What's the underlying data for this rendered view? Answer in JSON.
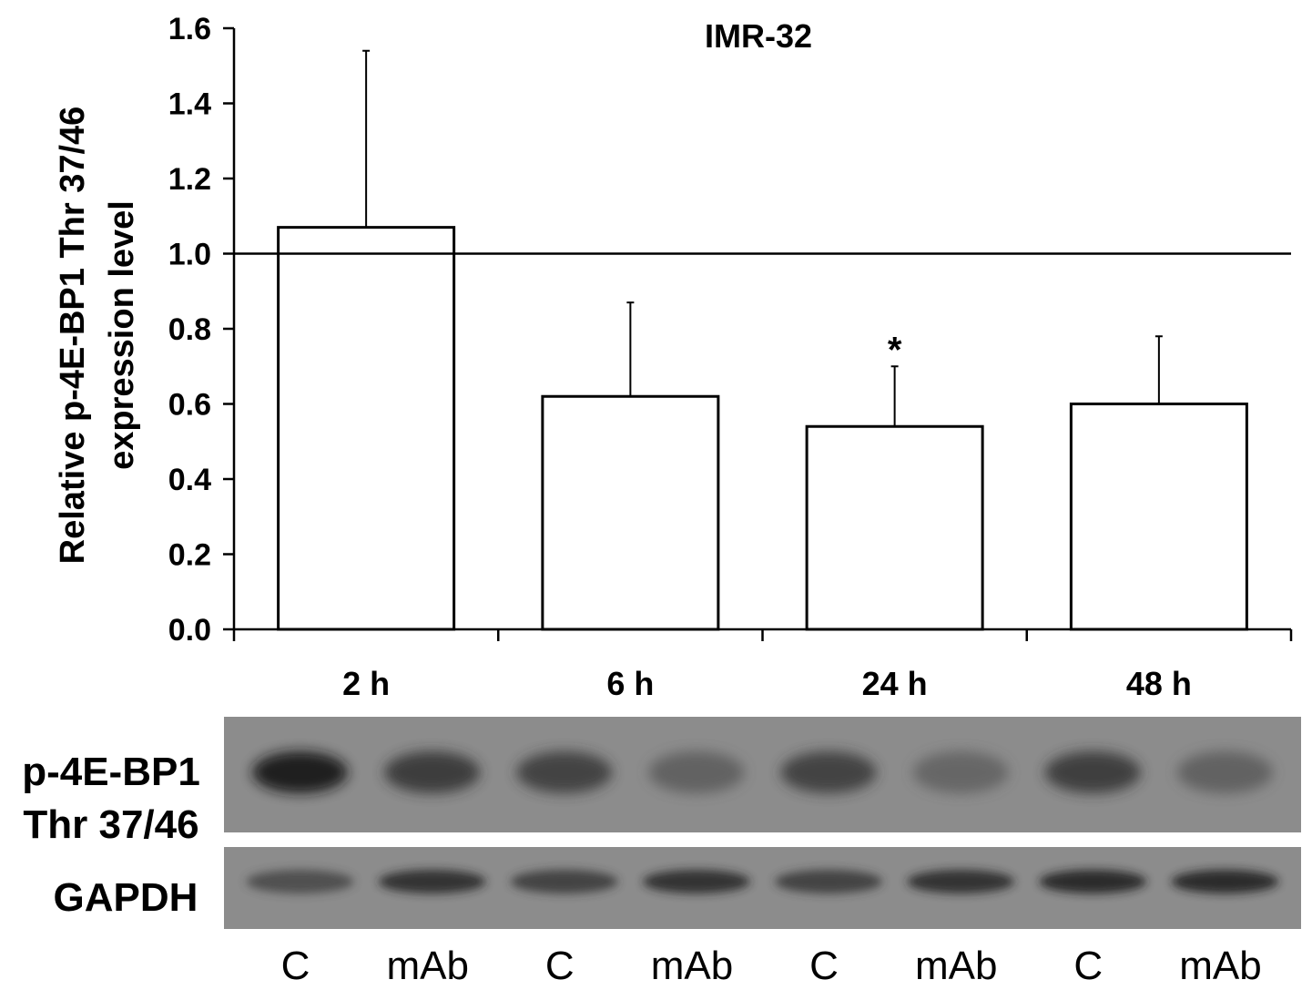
{
  "chart_data": {
    "type": "bar",
    "title": "IMR-32",
    "ylabel": [
      "Relative p-4E-BP1 Thr 37/46",
      "expression level"
    ],
    "xlabel": "",
    "categories": [
      "2 h",
      "6 h",
      "24 h",
      "48 h"
    ],
    "values": [
      1.07,
      0.62,
      0.54,
      0.6
    ],
    "error_upper": [
      1.54,
      0.87,
      0.7,
      0.78
    ],
    "significance": [
      "",
      "",
      "*",
      ""
    ],
    "reference_line": 1.0,
    "ylim": [
      0,
      1.6
    ],
    "yticks": [
      "0.0",
      "0.2",
      "0.4",
      "0.6",
      "0.8",
      "1.0",
      "1.2",
      "1.4",
      "1.6"
    ],
    "grid": false,
    "bar_fill": "#ffffff",
    "bar_stroke": "#000000"
  },
  "blot": {
    "rows": [
      {
        "label_lines": [
          "p-4E-BP1",
          "Thr 37/46"
        ],
        "band_intensity": [
          0.95,
          0.75,
          0.7,
          0.45,
          0.7,
          0.4,
          0.72,
          0.45
        ]
      },
      {
        "label_lines": [
          "GAPDH"
        ],
        "band_intensity": [
          0.6,
          0.8,
          0.7,
          0.8,
          0.7,
          0.8,
          0.85,
          0.85
        ]
      }
    ],
    "lanes": [
      "C",
      "mAb",
      "C",
      "mAb",
      "C",
      "mAb",
      "C",
      "mAb"
    ],
    "background": "#8c8c8c"
  }
}
